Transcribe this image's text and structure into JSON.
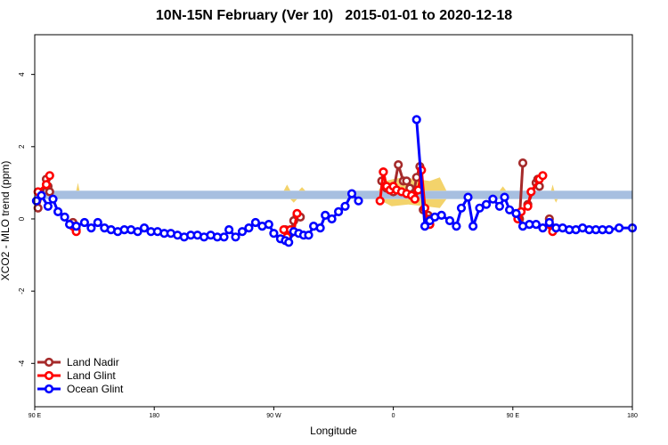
{
  "chart_data": {
    "type": "line",
    "title": "10N-15N February (Ver 10)   2015-01-01 to 2020-12-18",
    "xlabel": "Longitude",
    "ylabel": "XCO2 - MLO trend (ppm)",
    "xlim": [
      90,
      450
    ],
    "ylim": [
      -5.2,
      5.1
    ],
    "x_tick_labels": [
      {
        "at": 90,
        "label": "90 E"
      },
      {
        "at": 162,
        "label": "180"
      },
      {
        "at": 234,
        "label": "90 W"
      },
      {
        "at": 306,
        "label": "0"
      },
      {
        "at": 378,
        "label": "90 E"
      },
      {
        "at": 450,
        "label": "180"
      }
    ],
    "y_ticks": [
      -4,
      -2,
      0,
      2,
      4
    ],
    "band": {
      "from": 0.55,
      "to": 0.78,
      "color": "#a7bfe0"
    },
    "shade_color": "#f3d36b",
    "shade_polygons": [
      [
        [
          99,
          0.78
        ],
        [
          100,
          1.0
        ],
        [
          101,
          0.78
        ]
      ],
      [
        [
          115,
          0.78
        ],
        [
          116,
          1.0
        ],
        [
          117,
          0.78
        ]
      ],
      [
        [
          240,
          0.78
        ],
        [
          242,
          0.95
        ],
        [
          244,
          0.78
        ]
      ],
      [
        [
          244,
          0.55
        ],
        [
          246,
          0.45
        ],
        [
          248,
          0.55
        ]
      ],
      [
        [
          249,
          0.78
        ],
        [
          251,
          0.88
        ],
        [
          253,
          0.78
        ]
      ],
      [
        [
          297,
          0.78
        ],
        [
          301,
          1.05
        ],
        [
          306,
          1.1
        ],
        [
          312,
          1.15
        ],
        [
          320,
          1.1
        ],
        [
          328,
          1.05
        ],
        [
          334,
          1.15
        ],
        [
          338,
          0.78
        ]
      ],
      [
        [
          297,
          0.55
        ],
        [
          305,
          0.35
        ],
        [
          315,
          0.4
        ],
        [
          325,
          0.35
        ],
        [
          334,
          0.3
        ],
        [
          338,
          0.55
        ]
      ],
      [
        [
          370,
          0.78
        ],
        [
          372,
          0.9
        ],
        [
          374,
          0.78
        ]
      ],
      [
        [
          401,
          0.78
        ],
        [
          402,
          0.95
        ],
        [
          403,
          0.78
        ]
      ],
      [
        [
          403,
          0.55
        ],
        [
          404,
          0.45
        ],
        [
          405,
          0.55
        ]
      ]
    ],
    "legend": {
      "position": "bottom-left"
    },
    "series": [
      {
        "name": "Land Nadir",
        "color": "#a52a2a",
        "segments": [
          [
            [
              92,
              0.3
            ],
            [
              97,
              1.1
            ],
            [
              98,
              0.9
            ],
            [
              99,
              0.75
            ]
          ],
          [
            [
              113,
              -0.1
            ],
            [
              115,
              -0.3
            ]
          ],
          [
            [
              241,
              -0.3
            ],
            [
              244,
              -0.4
            ],
            [
              246,
              -0.05
            ],
            [
              248,
              0.1
            ],
            [
              250,
              0.05
            ]
          ],
          [
            [
              299,
              1.05
            ],
            [
              300,
              1.3
            ],
            [
              302,
              0.85
            ],
            [
              304,
              0.8
            ],
            [
              306,
              0.75
            ],
            [
              309,
              1.5
            ],
            [
              312,
              1.05
            ],
            [
              314,
              1.05
            ],
            [
              316,
              0.85
            ],
            [
              318,
              0.65
            ],
            [
              320,
              1.15
            ],
            [
              322,
              1.45
            ],
            [
              324,
              0.25
            ],
            [
              327,
              0.1
            ],
            [
              328,
              0.0
            ]
          ],
          [
            [
              382,
              0.0
            ],
            [
              384,
              1.55
            ]
          ],
          [
            [
              387,
              0.4
            ],
            [
              392,
              1.0
            ],
            [
              393,
              1.1
            ],
            [
              394,
              0.9
            ]
          ],
          [
            [
              400,
              0.0
            ],
            [
              402,
              -0.25
            ]
          ]
        ]
      },
      {
        "name": "Land Glint",
        "color": "#ff0000",
        "segments": [
          [
            [
              92,
              0.75
            ],
            [
              97,
              0.95
            ],
            [
              99,
              1.2
            ]
          ],
          [
            [
              113,
              -0.2
            ],
            [
              115,
              -0.35
            ]
          ],
          [
            [
              240,
              -0.3
            ],
            [
              242,
              -0.5
            ],
            [
              244,
              -0.3
            ],
            [
              246,
              -0.35
            ],
            [
              248,
              0.15
            ]
          ],
          [
            [
              298,
              0.5
            ],
            [
              300,
              1.3
            ],
            [
              302,
              0.9
            ],
            [
              304,
              0.8
            ],
            [
              306,
              0.9
            ],
            [
              308,
              0.8
            ],
            [
              311,
              0.75
            ],
            [
              314,
              0.7
            ],
            [
              317,
              0.65
            ],
            [
              319,
              0.55
            ],
            [
              321,
              0.8
            ],
            [
              323,
              1.35
            ],
            [
              325,
              0.3
            ],
            [
              327,
              -0.1
            ],
            [
              328,
              -0.15
            ]
          ],
          [
            [
              381,
              0.0
            ],
            [
              383,
              0.2
            ]
          ],
          [
            [
              387,
              0.35
            ],
            [
              389,
              0.75
            ],
            [
              394,
              1.1
            ],
            [
              396,
              1.2
            ]
          ],
          [
            [
              400,
              -0.15
            ],
            [
              402,
              -0.35
            ]
          ]
        ]
      },
      {
        "name": "Ocean Glint",
        "color": "#0000ff",
        "segments": [
          [
            [
              91,
              0.5
            ],
            [
              94,
              0.65
            ],
            [
              98,
              0.35
            ],
            [
              101,
              0.55
            ],
            [
              104,
              0.2
            ],
            [
              108,
              0.05
            ],
            [
              111,
              -0.15
            ],
            [
              115,
              -0.2
            ],
            [
              120,
              -0.1
            ],
            [
              124,
              -0.25
            ],
            [
              128,
              -0.1
            ],
            [
              132,
              -0.25
            ],
            [
              136,
              -0.3
            ],
            [
              140,
              -0.35
            ],
            [
              144,
              -0.3
            ],
            [
              148,
              -0.3
            ],
            [
              152,
              -0.35
            ],
            [
              156,
              -0.25
            ],
            [
              160,
              -0.35
            ],
            [
              164,
              -0.35
            ],
            [
              168,
              -0.4
            ],
            [
              172,
              -0.4
            ],
            [
              176,
              -0.45
            ],
            [
              180,
              -0.5
            ],
            [
              184,
              -0.45
            ],
            [
              188,
              -0.45
            ],
            [
              192,
              -0.5
            ],
            [
              196,
              -0.45
            ],
            [
              200,
              -0.5
            ],
            [
              204,
              -0.5
            ],
            [
              207,
              -0.3
            ],
            [
              211,
              -0.5
            ],
            [
              215,
              -0.35
            ],
            [
              219,
              -0.25
            ],
            [
              223,
              -0.1
            ],
            [
              227,
              -0.2
            ],
            [
              231,
              -0.15
            ],
            [
              234,
              -0.4
            ],
            [
              238,
              -0.55
            ],
            [
              241,
              -0.6
            ],
            [
              243,
              -0.65
            ],
            [
              246,
              -0.35
            ],
            [
              249,
              -0.4
            ],
            [
              252,
              -0.45
            ],
            [
              255,
              -0.45
            ],
            [
              258,
              -0.2
            ],
            [
              262,
              -0.25
            ],
            [
              265,
              0.1
            ],
            [
              269,
              0.0
            ],
            [
              273,
              0.2
            ],
            [
              277,
              0.35
            ],
            [
              281,
              0.7
            ],
            [
              285,
              0.5
            ]
          ],
          [
            [
              320,
              2.75
            ],
            [
              325,
              -0.2
            ],
            [
              328,
              -0.05
            ],
            [
              331,
              0.05
            ],
            [
              335,
              0.1
            ],
            [
              340,
              -0.05
            ],
            [
              344,
              -0.2
            ],
            [
              347,
              0.3
            ],
            [
              351,
              0.6
            ],
            [
              354,
              -0.2
            ],
            [
              358,
              0.3
            ],
            [
              362,
              0.4
            ],
            [
              366,
              0.55
            ],
            [
              370,
              0.35
            ],
            [
              373,
              0.6
            ],
            [
              376,
              0.25
            ],
            [
              380,
              0.15
            ],
            [
              384,
              -0.2
            ],
            [
              388,
              -0.15
            ],
            [
              392,
              -0.15
            ],
            [
              396,
              -0.25
            ],
            [
              400,
              -0.1
            ],
            [
              404,
              -0.25
            ],
            [
              408,
              -0.25
            ],
            [
              412,
              -0.3
            ],
            [
              416,
              -0.3
            ],
            [
              420,
              -0.25
            ],
            [
              424,
              -0.3
            ],
            [
              428,
              -0.3
            ],
            [
              432,
              -0.3
            ],
            [
              436,
              -0.3
            ],
            [
              442,
              -0.25
            ],
            [
              450,
              -0.25
            ]
          ]
        ]
      }
    ]
  }
}
